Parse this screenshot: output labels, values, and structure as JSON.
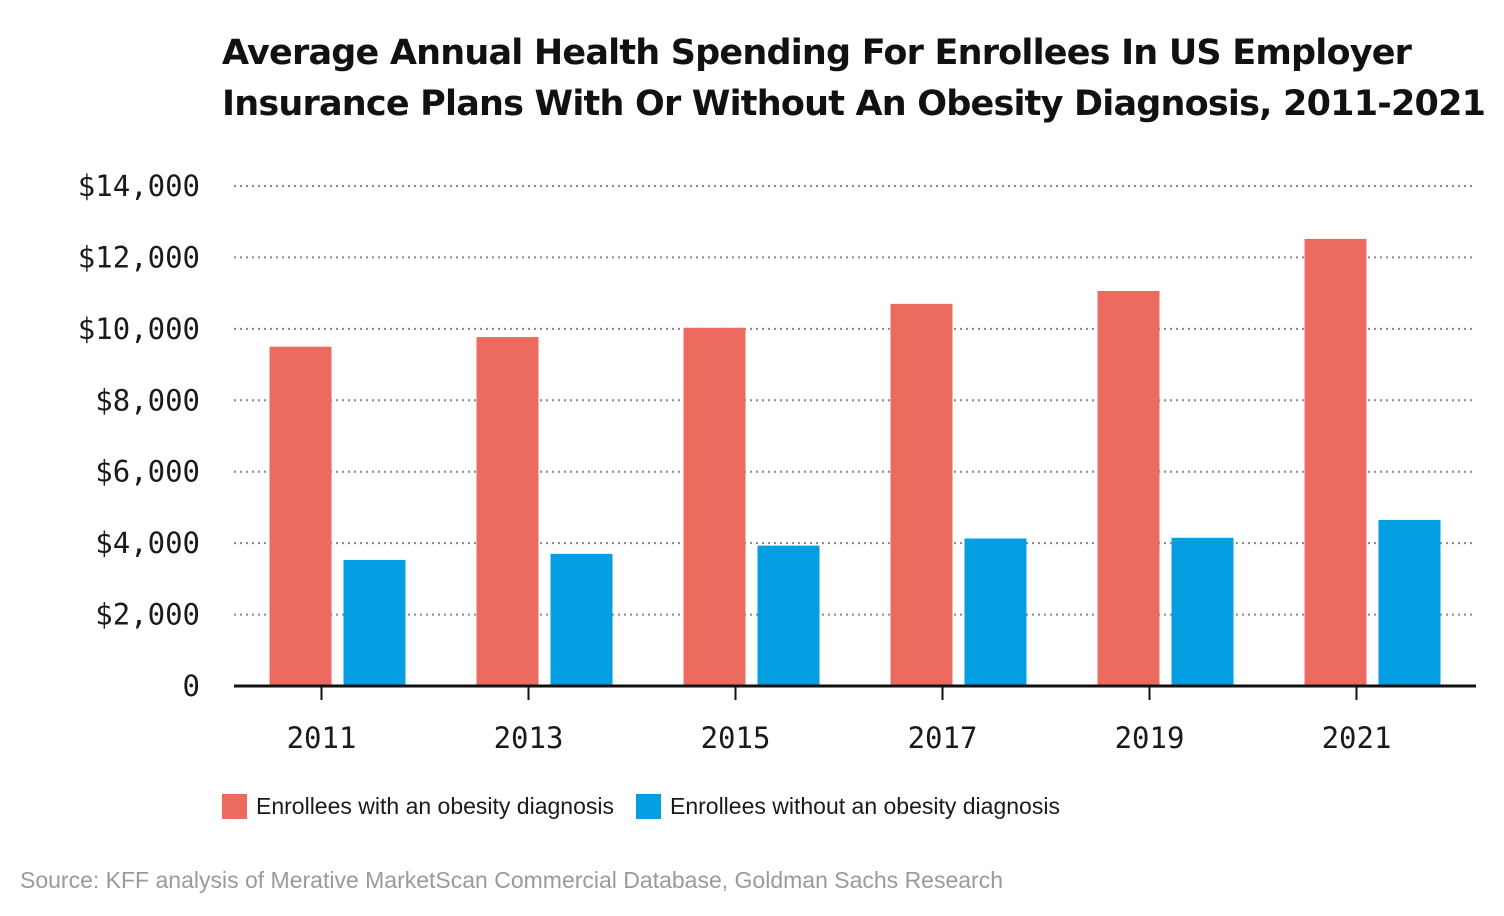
{
  "chart_data": {
    "type": "bar",
    "title": "Average Annual Health Spending For Enrollees In US Employer Insurance Plans With Or Without An Obesity Diagnosis, 2011-2021",
    "categories": [
      "2011",
      "2013",
      "2015",
      "2017",
      "2019",
      "2021"
    ],
    "series": [
      {
        "name": "Enrollees with an obesity diagnosis",
        "color": "#EC6B5E",
        "values": [
          9500,
          9770,
          10030,
          10700,
          11060,
          12520
        ]
      },
      {
        "name": "Enrollees without an obesity diagnosis",
        "color": "#049FE2",
        "values": [
          3530,
          3700,
          3930,
          4130,
          4150,
          4650
        ]
      }
    ],
    "yticks": [
      0,
      2000,
      4000,
      6000,
      8000,
      10000,
      12000,
      14000
    ],
    "ytick_labels": [
      "0",
      "$2,000",
      "$4,000",
      "$6,000",
      "$8,000",
      "$10,000",
      "$12,000",
      "$14,000"
    ],
    "ylim": [
      0,
      14000
    ],
    "xlabel": "",
    "ylabel": "",
    "grid": "horizontal dotted",
    "legend": "bottom",
    "source": "Source: KFF analysis of Merative MarketScan Commercial Database, Goldman Sachs Research"
  }
}
